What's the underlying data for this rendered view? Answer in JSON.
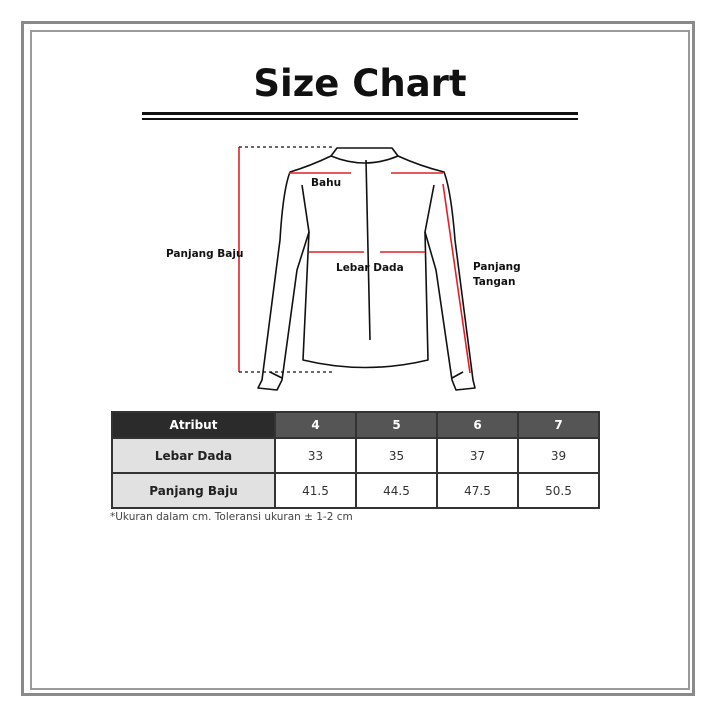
{
  "title": "Size Chart",
  "diagram": {
    "labels": {
      "bahu": "Bahu",
      "panjang_baju": "Panjang Baju",
      "lebar_dada": "Lebar Dada",
      "panjang_tangan_1": "Panjang",
      "panjang_tangan_2": "Tangan"
    },
    "measure_color": "#e0202a"
  },
  "table": {
    "headers": [
      "Atribut",
      "4",
      "5",
      "6",
      "7"
    ],
    "rows": [
      {
        "label": "Lebar Dada",
        "values": [
          "33",
          "35",
          "37",
          "39"
        ]
      },
      {
        "label": "Panjang Baju",
        "values": [
          "41.5",
          "44.5",
          "47.5",
          "50.5"
        ]
      }
    ]
  },
  "note": "*Ukuran dalam cm. Toleransi ukuran ± 1-2 cm"
}
